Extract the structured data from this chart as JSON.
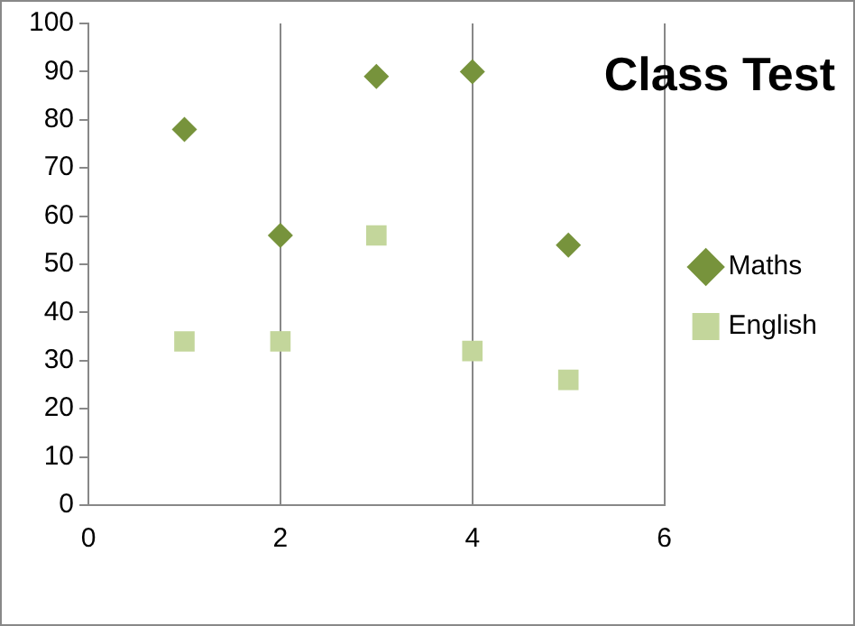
{
  "chart_data": {
    "type": "scatter",
    "title": "Class Test",
    "series": [
      {
        "name": "Maths",
        "color": "#77933c",
        "marker": "diamond",
        "x": [
          1,
          2,
          3,
          4,
          5
        ],
        "values": [
          78,
          56,
          89,
          90,
          54
        ]
      },
      {
        "name": "English",
        "color": "#c3d69b",
        "marker": "square",
        "x": [
          1,
          2,
          3,
          4,
          5
        ],
        "values": [
          34,
          34,
          56,
          32,
          26
        ]
      }
    ],
    "xlim": [
      0,
      6
    ],
    "xticks": [
      0,
      2,
      4,
      6
    ],
    "ylim": [
      0,
      100
    ],
    "yticks": [
      0,
      10,
      20,
      30,
      40,
      50,
      60,
      70,
      80,
      90,
      100
    ],
    "grid": "x",
    "legend": "right"
  }
}
